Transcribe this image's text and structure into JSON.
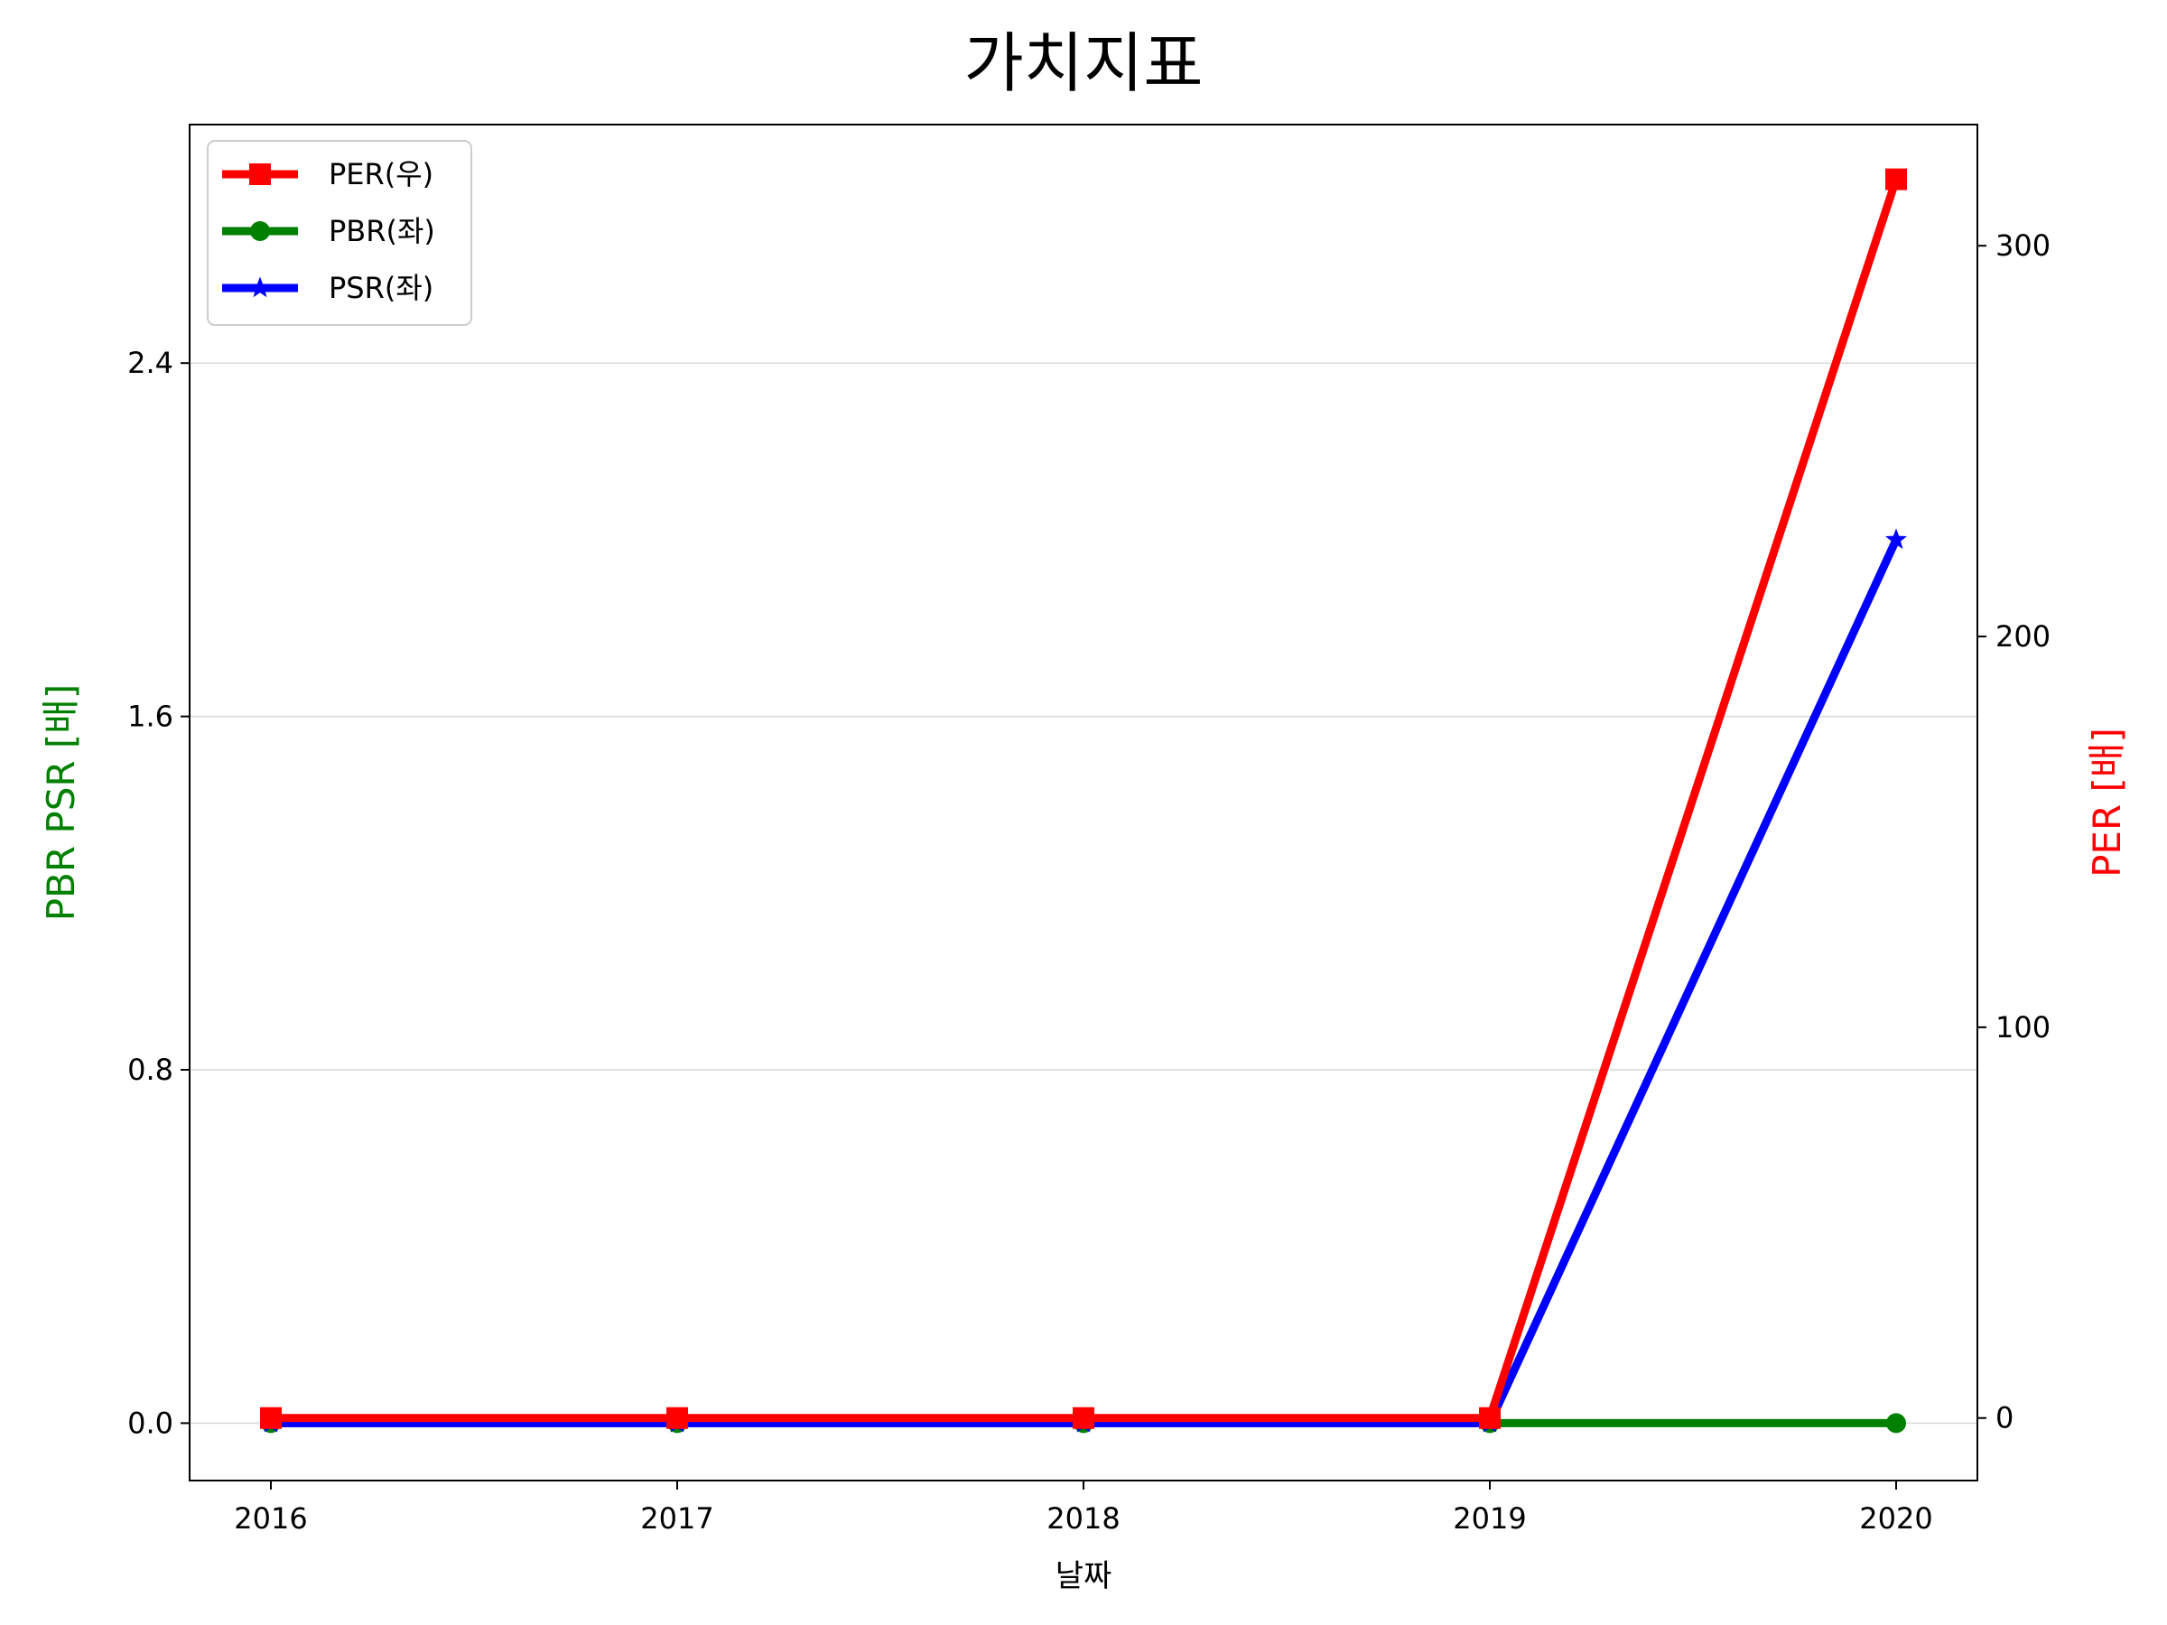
{
  "chart_data": {
    "type": "line",
    "title": "가치지표",
    "xlabel": "날짜",
    "ylabel_left": "PBR PSR [배]",
    "ylabel_right": "PER [배]",
    "categories": [
      "2016",
      "2017",
      "2018",
      "2019",
      "2020"
    ],
    "left_axis": {
      "ylim": [
        -0.13,
        2.94
      ],
      "ticks": [
        0.0,
        0.8,
        1.6,
        2.4
      ],
      "tick_labels": [
        "0.0",
        "0.8",
        "1.6",
        "2.4"
      ],
      "label_color": "#008000"
    },
    "right_axis": {
      "ylim": [
        -16,
        331
      ],
      "ticks": [
        0,
        100,
        200,
        300
      ],
      "tick_labels": [
        "0",
        "100",
        "200",
        "300"
      ],
      "label_color": "#ff0000"
    },
    "grid": "horizontal",
    "legend_position": "top-left",
    "series": [
      {
        "name": "PER(우)",
        "axis": "right",
        "color": "#ff0000",
        "marker": "square",
        "values": [
          0,
          0,
          0,
          0,
          317
        ]
      },
      {
        "name": "PBR(좌)",
        "axis": "left",
        "color": "#008000",
        "marker": "circle",
        "values": [
          0,
          0,
          0,
          0,
          0
        ]
      },
      {
        "name": "PSR(좌)",
        "axis": "left",
        "color": "#0000ff",
        "marker": "star",
        "values": [
          0,
          0,
          0,
          0,
          2.0
        ]
      }
    ]
  }
}
